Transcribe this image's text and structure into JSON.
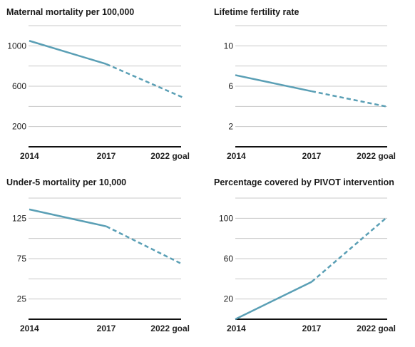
{
  "colors": {
    "line": "#5a9fb5",
    "grid": "#c8c8c8",
    "axis": "#111111"
  },
  "chart_data": [
    {
      "type": "line",
      "title": "Maternal mortality per 100,000",
      "categories": [
        "2014",
        "2017",
        "2022 goal"
      ],
      "yticks": [
        200,
        600,
        1000
      ],
      "ylim": [
        0,
        1200
      ],
      "series": [
        {
          "values": [
            1050,
            820,
            490
          ],
          "dashed_from_index": 1
        }
      ],
      "grid": true
    },
    {
      "type": "line",
      "title": "Lifetime fertility rate",
      "categories": [
        "2014",
        "2017",
        "2022 goal"
      ],
      "yticks": [
        2,
        6,
        10
      ],
      "ylim": [
        0,
        12
      ],
      "series": [
        {
          "values": [
            7.1,
            5.5,
            4.0
          ],
          "dashed_from_index": 1
        }
      ],
      "grid": true
    },
    {
      "type": "line",
      "title": "Under-5 mortality per 10,000",
      "categories": [
        "2014",
        "2017",
        "2022 goal"
      ],
      "yticks": [
        25,
        75,
        125
      ],
      "ylim": [
        0,
        150
      ],
      "series": [
        {
          "values": [
            136,
            115,
            68
          ],
          "dashed_from_index": 1
        }
      ],
      "grid": true
    },
    {
      "type": "line",
      "title": "Percentage covered by PIVOT intervention",
      "categories": [
        "2014",
        "2017",
        "2022 goal"
      ],
      "yticks": [
        20,
        60,
        100
      ],
      "ylim": [
        0,
        120
      ],
      "series": [
        {
          "values": [
            0,
            37,
            100
          ],
          "dashed_from_index": 1
        }
      ],
      "grid": true
    }
  ]
}
